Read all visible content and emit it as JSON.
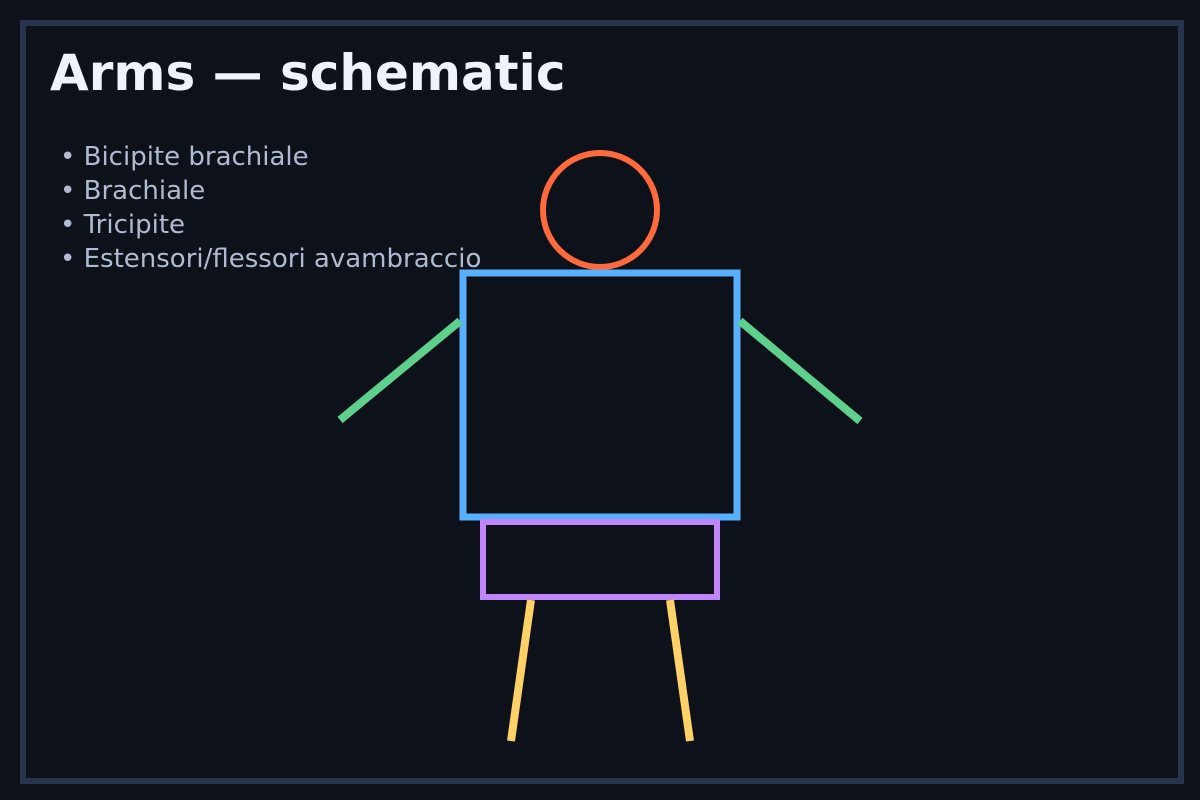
{
  "title": "Arms — schematic",
  "muscles": [
    "Bicipite brachiale",
    "Brachiale",
    "Tricipite",
    "Estensori/flessori avambraccio"
  ],
  "colors": {
    "background": "#0c111a",
    "frame": "#27344b",
    "title": "#eef3fc",
    "list_text": "#aebbd0",
    "head": "#ff6a3d",
    "torso": "#58b0ff",
    "arms": "#5ed08c",
    "pelvis": "#c084fc",
    "legs": "#ffd166"
  }
}
